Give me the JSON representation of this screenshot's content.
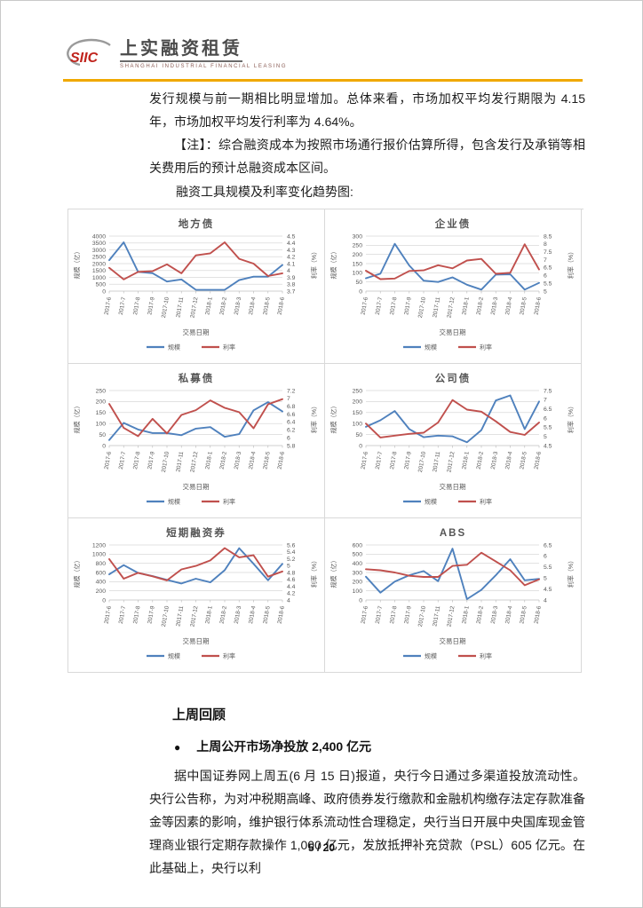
{
  "header": {
    "logo": {
      "siic": "SIIC",
      "cn": "上实融资租赁",
      "en": "SHANGHAI INDUSTRIAL FINANCIAL LEASING"
    },
    "rule_color": "#F0A800"
  },
  "intro": {
    "p1": "发行规模与前一期相比明显增加。总体来看，市场加权平均发行期限为 4.15 年，市场加权平均发行利率为 4.64%。",
    "p2": "【注】：综合融资成本为按照市场通行报价估算所得，包含发行及承销等相关费用后的预计总融资成本区间。",
    "caption": "融资工具规模及利率变化趋势图:"
  },
  "review": {
    "heading": "上周回顾",
    "bullet_marker": "●",
    "bullet": "上周公开市场净投放 2,400 亿元",
    "p1": "据中国证券网上周五(6 月 15 日)报道，央行今日通过多渠道投放流动性。央行公告称，为对冲税期高峰、政府债券发行缴款和金融机构缴存法定存款准备金等因素的影响，维护银行体系流动性合理稳定，央行当日开展中央国库现金管理商业银行定期存款操作 1,000 亿元，发放抵押补充贷款（PSL）605 亿元。在此基础上，央行以利"
  },
  "footer": {
    "page_number": "5 / 20"
  },
  "chart_common": {
    "categories": [
      "2017-6",
      "2017-7",
      "2017-8",
      "2017-9",
      "2017-10",
      "2017-11",
      "2017-12",
      "2018-1",
      "2018-2",
      "2018-3",
      "2018-4",
      "2018-5",
      "2018-6"
    ],
    "xlabel": "交易日期",
    "ylabel_left": "规模（亿）",
    "ylabel_right": "利率（%）",
    "legend": [
      "规模",
      "利率"
    ],
    "legend_position": "bottom",
    "grid": true,
    "colors": {
      "scale_series": "#4F81BD",
      "rate_series": "#C0504D",
      "gridline": "#D9D9D9",
      "axis_line": "#BFBFBF",
      "axis_text": "#595959"
    }
  },
  "chart_data": [
    {
      "type": "line",
      "title": "地方债",
      "left_axis": {
        "min": 0,
        "max": 4000,
        "step": 500
      },
      "right_axis": {
        "min": 3.7,
        "max": 4.5,
        "step": 0.1
      },
      "series": [
        {
          "name": "规模",
          "axis": "left",
          "values": [
            2250,
            3550,
            1400,
            1300,
            700,
            850,
            100,
            90,
            100,
            800,
            1050,
            1050,
            1900
          ]
        },
        {
          "name": "利率",
          "axis": "right",
          "values": [
            4.04,
            3.87,
            3.98,
            3.99,
            4.09,
            3.96,
            4.22,
            4.25,
            4.41,
            4.17,
            4.1,
            3.92,
            3.96
          ]
        }
      ]
    },
    {
      "type": "line",
      "title": "企业债",
      "left_axis": {
        "min": 0,
        "max": 300,
        "step": 50
      },
      "right_axis": {
        "min": 5,
        "max": 8.5,
        "step": 0.5
      },
      "series": [
        {
          "name": "规模",
          "axis": "left",
          "values": [
            70,
            95,
            258,
            140,
            57,
            50,
            75,
            35,
            8,
            90,
            92,
            8,
            45
          ]
        },
        {
          "name": "利率",
          "axis": "right",
          "values": [
            6.3,
            5.76,
            5.8,
            6.28,
            6.32,
            6.65,
            6.45,
            6.95,
            7.05,
            6.1,
            6.17,
            7.98,
            6.38
          ]
        }
      ]
    },
    {
      "type": "line",
      "title": "私募债",
      "left_axis": {
        "min": 0,
        "max": 250,
        "step": 50
      },
      "right_axis": {
        "min": 5.8,
        "max": 7.2,
        "step": 0.2
      },
      "series": [
        {
          "name": "规模",
          "axis": "left",
          "values": [
            25,
            103,
            73,
            57,
            57,
            47,
            77,
            84,
            40,
            52,
            160,
            197,
            155
          ]
        },
        {
          "name": "利率",
          "axis": "right",
          "values": [
            6.86,
            6.25,
            6.04,
            6.48,
            6.11,
            6.58,
            6.7,
            6.95,
            6.76,
            6.65,
            6.24,
            6.85,
            6.98
          ]
        }
      ]
    },
    {
      "type": "line",
      "title": "公司债",
      "left_axis": {
        "min": 0,
        "max": 250,
        "step": 50
      },
      "right_axis": {
        "min": 4.5,
        "max": 7.5,
        "step": 0.5
      },
      "series": [
        {
          "name": "规模",
          "axis": "left",
          "values": [
            85,
            115,
            157,
            75,
            38,
            45,
            42,
            15,
            70,
            205,
            228,
            75,
            200
          ]
        },
        {
          "name": "利率",
          "axis": "right",
          "values": [
            5.7,
            4.94,
            5.04,
            5.14,
            5.2,
            5.76,
            6.98,
            6.46,
            6.35,
            5.82,
            5.24,
            5.08,
            5.76
          ]
        }
      ]
    },
    {
      "type": "line",
      "title": "短期融资券",
      "left_axis": {
        "min": 0,
        "max": 1200,
        "step": 200
      },
      "right_axis": {
        "min": 4,
        "max": 5.6,
        "step": 0.2
      },
      "series": [
        {
          "name": "规模",
          "axis": "left",
          "values": [
            560,
            760,
            590,
            520,
            440,
            360,
            465,
            385,
            650,
            1130,
            790,
            430,
            790
          ]
        },
        {
          "name": "利率",
          "axis": "right",
          "values": [
            5.19,
            4.62,
            4.79,
            4.69,
            4.57,
            4.89,
            4.99,
            5.15,
            5.51,
            5.24,
            5.3,
            4.68,
            4.83
          ]
        }
      ]
    },
    {
      "type": "line",
      "title": "ABS",
      "left_axis": {
        "min": 0,
        "max": 600,
        "step": 100
      },
      "right_axis": {
        "min": 4,
        "max": 6.5,
        "step": 0.5
      },
      "series": [
        {
          "name": "规模",
          "axis": "left",
          "values": [
            255,
            80,
            200,
            270,
            315,
            205,
            560,
            10,
            110,
            270,
            445,
            215,
            230
          ]
        },
        {
          "name": "利率",
          "axis": "right",
          "values": [
            5.4,
            5.35,
            5.25,
            5.1,
            5.05,
            5.05,
            5.55,
            5.6,
            6.15,
            5.75,
            5.35,
            4.67,
            4.94
          ]
        }
      ]
    }
  ]
}
